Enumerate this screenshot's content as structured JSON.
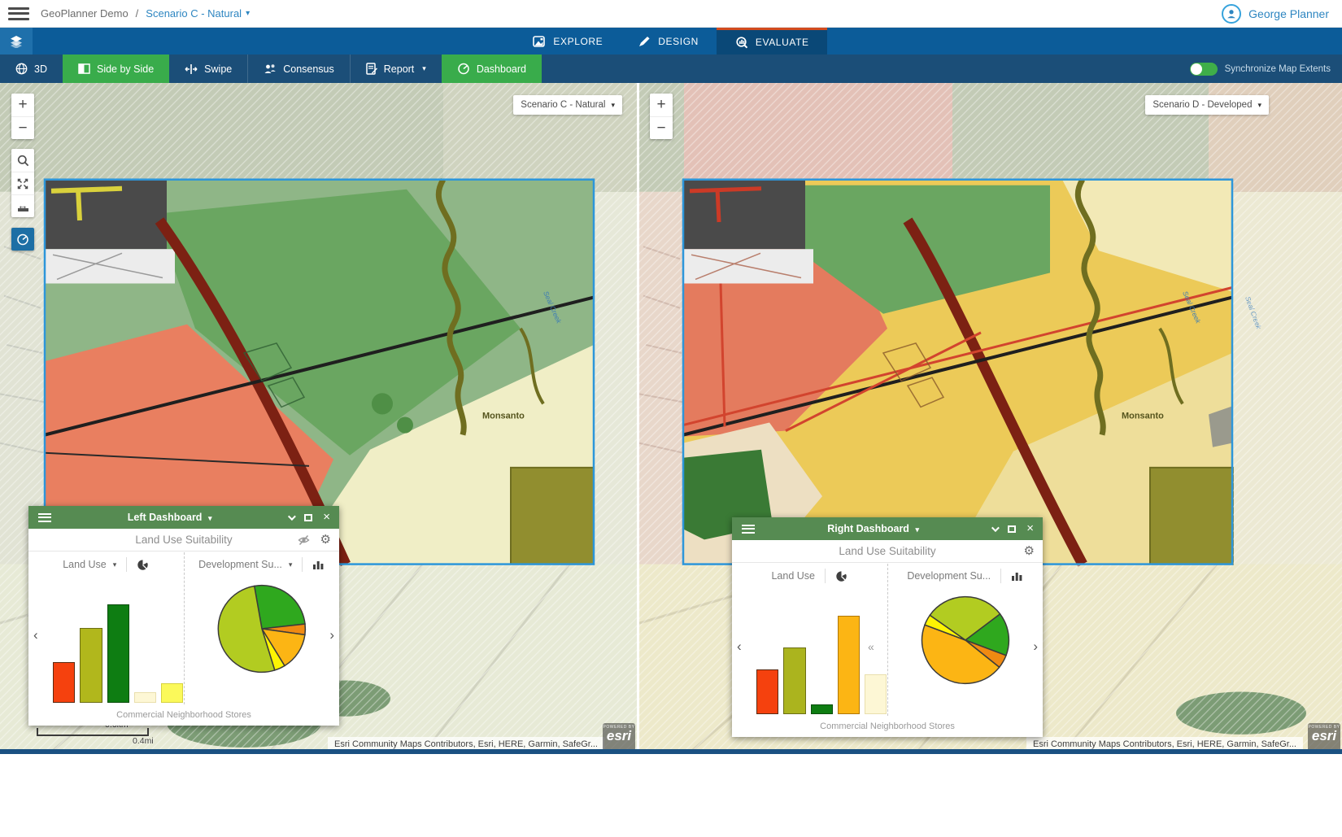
{
  "header": {
    "breadcrumb": {
      "app": "GeoPlanner Demo",
      "separator": "/",
      "current": "Scenario C - Natural"
    },
    "user": {
      "name": "George Planner"
    }
  },
  "primary_nav": {
    "tabs": [
      {
        "label": "EXPLORE",
        "icon": "explore-map-icon",
        "active": false
      },
      {
        "label": "DESIGN",
        "icon": "pencil-icon",
        "active": false
      },
      {
        "label": "EVALUATE",
        "icon": "evaluate-search-icon",
        "active": true
      }
    ],
    "active_accent_color": "#d24b1e",
    "bar_color": "#0c5c99"
  },
  "toolbar": {
    "buttons": [
      {
        "label": "3D",
        "icon": "globe-icon",
        "active": false
      },
      {
        "label": "Side by Side",
        "icon": "side-by-side-icon",
        "active": true
      },
      {
        "label": "Swipe",
        "icon": "swipe-icon",
        "active": false
      },
      {
        "label": "Consensus",
        "icon": "consensus-people-icon",
        "active": false
      },
      {
        "label": "Report",
        "icon": "report-icon",
        "dropdown": true,
        "active": false
      },
      {
        "label": "Dashboard",
        "icon": "dashboard-gauge-icon",
        "active": true
      }
    ],
    "active_color": "#39ac4b",
    "sync_toggle": {
      "label": "Synchronize Map Extents",
      "state": "on",
      "color": "#3fae49"
    }
  },
  "map_controls_symbols": {
    "zoom_in": "+",
    "zoom_out": "−",
    "measure_arrow": "↔"
  },
  "left_map": {
    "scenario_selector": {
      "value": "Scenario C - Natural"
    },
    "controls": [
      "zoom-in",
      "zoom-out",
      "search",
      "full-extent",
      "measure",
      "dashboard"
    ],
    "map_labels": {
      "place": "Monsanto",
      "creek": "Seal Creek"
    },
    "scalebar": {
      "km": "0.6km",
      "mi": "0.4mi"
    },
    "attribution": "Esri Community Maps Contributors, Esri, HERE, Garmin, SafeGr...",
    "logo": {
      "powered_by": "POWERED BY",
      "brand": "esri"
    }
  },
  "right_map": {
    "scenario_selector": {
      "value": "Scenario D - Developed"
    },
    "controls": [
      "zoom-in",
      "zoom-out"
    ],
    "map_labels": {
      "place": "Monsanto",
      "creek": "Seal Creek"
    },
    "attribution": "Esri Community Maps Contributors, Esri, HERE, Garmin, SafeGr...",
    "logo": {
      "powered_by": "POWERED BY",
      "brand": "esri"
    }
  },
  "left_dashboard": {
    "title": "Left Dashboard",
    "widget_title": "Land Use Suitability",
    "cards": [
      {
        "selector": "Land Use",
        "icon": "pie-chart-icon"
      },
      {
        "selector": "Development Su...",
        "icon": "bar-chart-icon"
      }
    ],
    "caption": "Commercial Neighborhood Stores"
  },
  "right_dashboard": {
    "title": "Right Dashboard",
    "widget_title": "Land Use Suitability",
    "cards": [
      {
        "selector": "Land Use",
        "icon": "pie-chart-icon"
      },
      {
        "selector": "Development Su...",
        "icon": "bar-chart-icon"
      }
    ],
    "caption": "Commercial Neighborhood Stores"
  },
  "chart_data": [
    {
      "id": "left-dashboard-land-use-bar",
      "type": "bar",
      "panel": "Left Dashboard",
      "selector_label": "Land Use",
      "values": [
        38,
        70,
        92,
        10,
        18
      ],
      "unit": "percent of chart height (chart has no visible axes or labels)",
      "colors": [
        "#f5410e",
        "#b1b71c",
        "#0e7d12",
        "#fdf7d5",
        "#fbf95a"
      ],
      "bar_borders": [
        "#5a2a12",
        "#6b6e14",
        "#0a4d0c",
        "#e9dfad",
        "#d6d23e"
      ],
      "caption": "Commercial Neighborhood Stores"
    },
    {
      "id": "left-dashboard-development-suitability-pie",
      "type": "pie",
      "panel": "Left Dashboard",
      "selector_label": "Development Su...",
      "labels": [
        "green",
        "orange",
        "amber",
        "yellow",
        "yellow-green"
      ],
      "values": [
        26,
        4,
        14,
        4,
        52
      ],
      "unit": "percent (estimated from slice angles, unlabeled)",
      "colors": [
        "#2fa81e",
        "#f08a12",
        "#fcb514",
        "#fdf403",
        "#b2cc21"
      ],
      "start_angle": -10
    },
    {
      "id": "right-dashboard-land-use-bar",
      "type": "bar",
      "panel": "Right Dashboard",
      "selector_label": "Land Use",
      "values": [
        42,
        62,
        9,
        92,
        37
      ],
      "unit": "percent of chart height (chart has no visible axes or labels)",
      "colors": [
        "#f5410e",
        "#abb41e",
        "#0e7d12",
        "#fcb514",
        "#fdf7d5"
      ],
      "bar_borders": [
        "#5a2a12",
        "#6b6e14",
        "#0a4d0c",
        "#b07706",
        "#e9dfad"
      ],
      "caption": "Commercial Neighborhood Stores"
    },
    {
      "id": "right-dashboard-development-suitability-pie",
      "type": "pie",
      "panel": "Right Dashboard",
      "selector_label": "Development Su...",
      "labels": [
        "yellow-green",
        "green",
        "orange",
        "amber",
        "yellow"
      ],
      "values": [
        30,
        16,
        5,
        45,
        4
      ],
      "unit": "percent (estimated from slice angles, unlabeled)",
      "colors": [
        "#b2cc21",
        "#2fa81e",
        "#f08a12",
        "#fcb514",
        "#fdf403"
      ],
      "start_angle": -55
    }
  ]
}
